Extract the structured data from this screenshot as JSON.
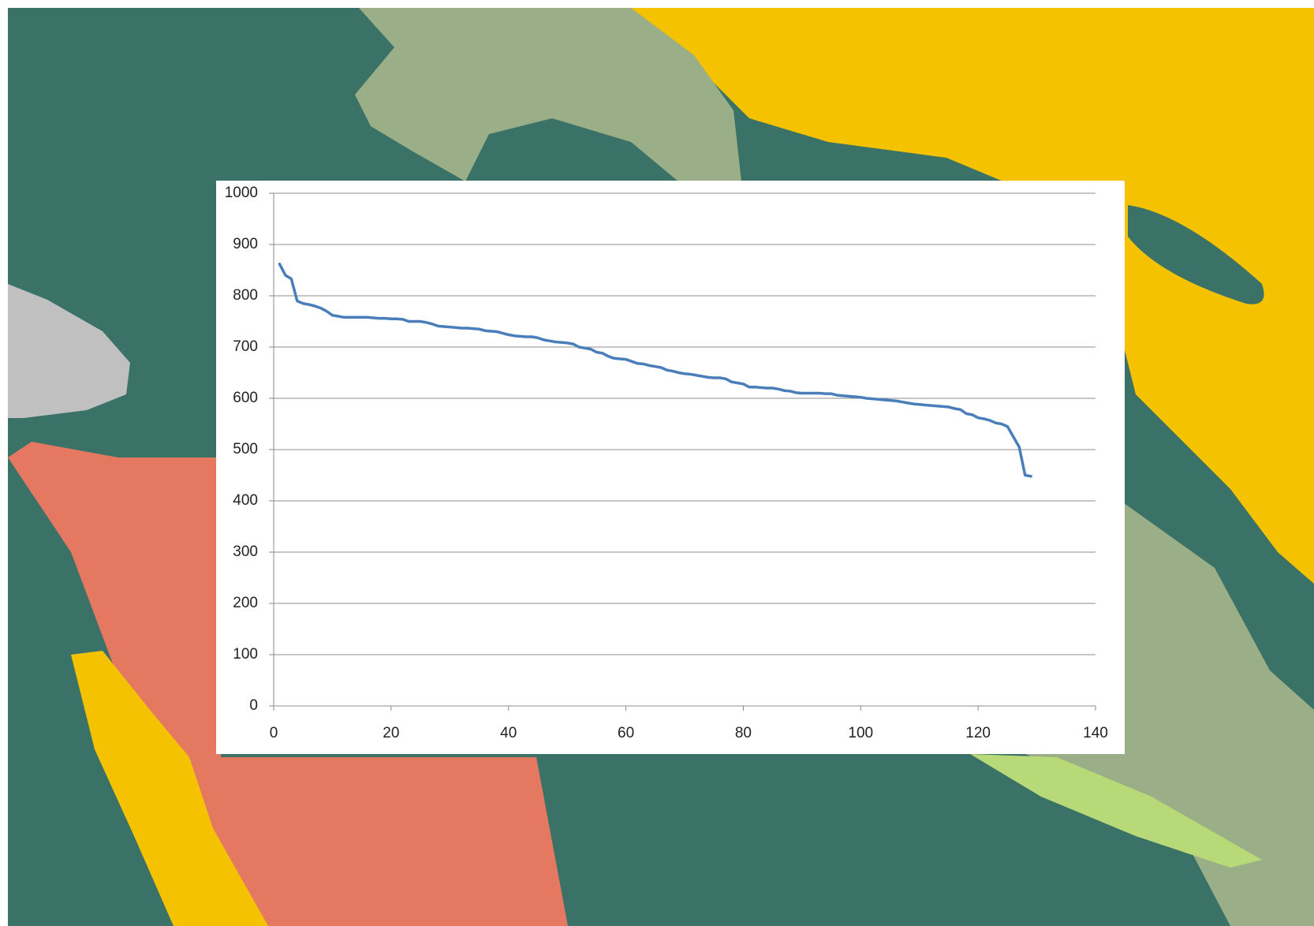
{
  "chart_data": {
    "type": "line",
    "color": "#4a7ebb",
    "grid": true,
    "xlim": [
      0,
      140
    ],
    "xticks": [
      0,
      20,
      40,
      60,
      80,
      100,
      120,
      140
    ],
    "ylim": [
      0,
      1000
    ],
    "yticks": [
      0,
      100,
      200,
      300,
      400,
      500,
      600,
      700,
      800,
      900,
      1000
    ],
    "x": [
      1,
      2,
      3,
      4,
      5,
      6,
      7,
      8,
      9,
      10,
      11,
      12,
      13,
      14,
      15,
      16,
      17,
      18,
      19,
      20,
      21,
      22,
      23,
      24,
      25,
      26,
      27,
      28,
      29,
      30,
      31,
      32,
      33,
      34,
      35,
      36,
      37,
      38,
      39,
      40,
      41,
      42,
      43,
      44,
      45,
      46,
      47,
      48,
      49,
      50,
      51,
      52,
      53,
      54,
      55,
      56,
      57,
      58,
      59,
      60,
      61,
      62,
      63,
      64,
      65,
      66,
      67,
      68,
      69,
      70,
      71,
      72,
      73,
      74,
      75,
      76,
      77,
      78,
      79,
      80,
      81,
      82,
      83,
      84,
      85,
      86,
      87,
      88,
      89,
      90,
      91,
      92,
      93,
      94,
      95,
      96,
      97,
      98,
      99,
      100,
      101,
      102,
      103,
      104,
      105,
      106,
      107,
      108,
      109,
      110,
      111,
      112,
      113,
      114,
      115,
      116,
      117,
      118,
      119,
      120,
      121,
      122,
      123,
      124,
      125,
      126,
      127,
      128,
      129
    ],
    "values": [
      862,
      840,
      833,
      790,
      785,
      783,
      780,
      776,
      770,
      762,
      760,
      758,
      758,
      758,
      758,
      758,
      757,
      756,
      756,
      755,
      755,
      754,
      750,
      750,
      750,
      748,
      745,
      741,
      740,
      739,
      738,
      737,
      737,
      736,
      735,
      732,
      731,
      730,
      727,
      724,
      722,
      721,
      720,
      720,
      718,
      714,
      712,
      710,
      709,
      708,
      706,
      700,
      698,
      696,
      690,
      688,
      682,
      678,
      677,
      676,
      672,
      668,
      667,
      664,
      662,
      660,
      655,
      653,
      650,
      648,
      647,
      645,
      643,
      641,
      640,
      640,
      638,
      632,
      630,
      628,
      622,
      622,
      621,
      620,
      620,
      618,
      615,
      614,
      611,
      610,
      610,
      610,
      610,
      609,
      609,
      606,
      605,
      604,
      603,
      602,
      600,
      599,
      598,
      597,
      596,
      595,
      593,
      591,
      589,
      588,
      587,
      586,
      585,
      584,
      583,
      580,
      578,
      570,
      568,
      562,
      560,
      557,
      552,
      550,
      545,
      525,
      505,
      450,
      448
    ]
  }
}
